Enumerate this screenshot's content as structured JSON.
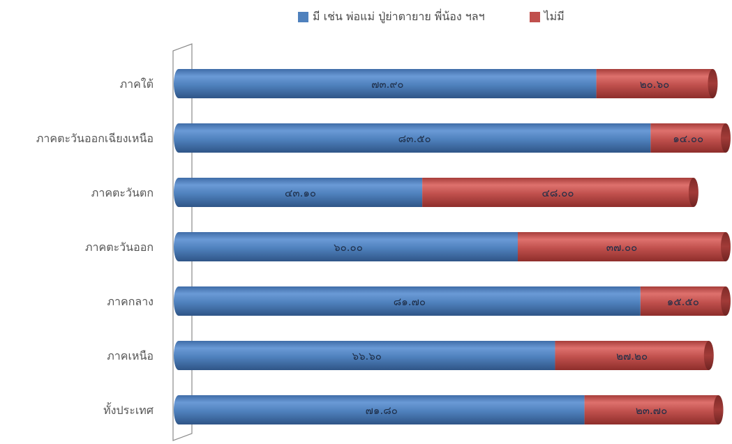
{
  "legend": {
    "series_1": "มี เช่น พ่อแม่ ปู่ย่าตายาย พี่น้อง ฯลฯ",
    "series_2": "ไม่มี"
  },
  "chart_data": {
    "type": "bar",
    "orientation": "horizontal",
    "stacked": true,
    "categories": [
      "ภาคใต้",
      "ภาคตะวันออกเฉียงเหนือ",
      "ภาคตะวันตก",
      "ภาคตะวันออก",
      "ภาคกลาง",
      "ภาคเหนือ",
      "ทั้งประเทศ"
    ],
    "series": [
      {
        "name": "มี เช่น พ่อแม่ ปู่ย่าตายาย พี่น้อง ฯลฯ",
        "color": "#4f81bd",
        "values": [
          73.9,
          83.5,
          43.1,
          60.0,
          81.7,
          66.6,
          71.8
        ],
        "labels": [
          "๗๓.๙๐",
          "๘๓.๕๐",
          "๔๓.๑๐",
          "๖๐.๐๐",
          "๘๑.๗๐",
          "๖๖.๖๐",
          "๗๑.๘๐"
        ]
      },
      {
        "name": "ไม่มี",
        "color": "#c0504d",
        "values": [
          20.6,
          14.0,
          48.0,
          37.0,
          15.5,
          27.2,
          23.7
        ],
        "labels": [
          "๒๐.๖๐",
          "๑๔.๐๐",
          "๔๘.๐๐",
          "๓๗.๐๐",
          "๑๕.๕๐",
          "๒๗.๒๐",
          "๒๓.๗๐"
        ]
      }
    ],
    "legend_position": "top",
    "grid": false,
    "axis_visible": false,
    "style": "3d-cylinder"
  }
}
